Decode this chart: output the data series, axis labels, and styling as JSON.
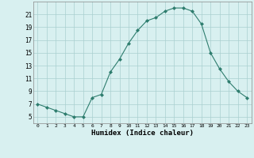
{
  "x": [
    0,
    1,
    2,
    3,
    4,
    5,
    6,
    7,
    8,
    9,
    10,
    11,
    12,
    13,
    14,
    15,
    16,
    17,
    18,
    19,
    20,
    21,
    22,
    23
  ],
  "y": [
    7,
    6.5,
    6,
    5.5,
    5,
    5,
    8,
    8.5,
    12,
    14,
    16.5,
    18.5,
    20,
    20.5,
    21.5,
    22,
    22,
    21.5,
    19.5,
    15,
    12.5,
    10.5,
    9,
    8
  ],
  "line_color": "#2e7d6e",
  "marker": "D",
  "marker_size": 2,
  "bg_color": "#d8f0f0",
  "grid_color": "#aacfcf",
  "xlabel": "Humidex (Indice chaleur)",
  "xlim": [
    -0.5,
    23.5
  ],
  "ylim": [
    4,
    23
  ],
  "yticks": [
    5,
    7,
    9,
    11,
    13,
    15,
    17,
    19,
    21
  ],
  "xticks": [
    0,
    1,
    2,
    3,
    4,
    5,
    6,
    7,
    8,
    9,
    10,
    11,
    12,
    13,
    14,
    15,
    16,
    17,
    18,
    19,
    20,
    21,
    22,
    23
  ]
}
